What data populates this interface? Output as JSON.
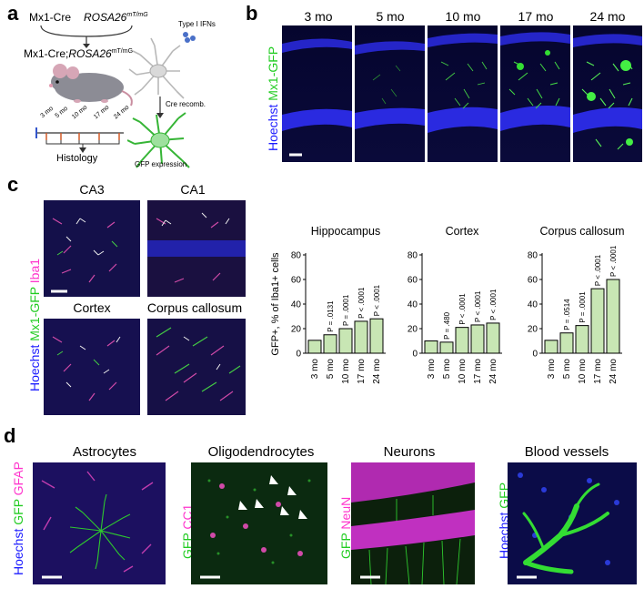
{
  "panels": {
    "a": "a",
    "b": "b",
    "c": "c",
    "d": "d"
  },
  "panel_a": {
    "mx1cre": "Mx1-Cre",
    "rosa_base": "ROSA26",
    "rosa_sup": "mT/mG",
    "cross_base": "Mx1-Cre;",
    "cross_rosa": "ROSA26",
    "cross_sup": "mT/mG",
    "type1": "Type I IFNs",
    "cre": "Cre recomb.",
    "gfp_expr": "GFP expression",
    "histology": "Histology",
    "timeline": [
      "3 mo",
      "5 mo",
      "10 mo",
      "17 mo",
      "24 mo"
    ]
  },
  "panel_b": {
    "ages": [
      "3 mo",
      "5 mo",
      "10 mo",
      "17 mo",
      "24 mo"
    ],
    "stain_hoechst": "Hoechst",
    "stain_gfp": "Mx1-GFP"
  },
  "panel_c": {
    "regions": [
      "CA3",
      "CA1",
      "Cortex",
      "Corpus callosum"
    ],
    "stain_hoechst": "Hoechst",
    "stain_gfp": "Mx1-GFP",
    "stain_iba": "Iba1"
  },
  "panel_d": {
    "titles": [
      "Astrocytes",
      "Oligodendrocytes",
      "Neurons",
      "Blood vessels"
    ],
    "astro": {
      "hoechst": "Hoechst",
      "gfp": "GFP",
      "gfap": "GFAP"
    },
    "oligo": {
      "gfp": "GFP",
      "cc1": "CC1"
    },
    "neuron": {
      "gfp": "GFP",
      "neun": "NeuN"
    },
    "vessel": {
      "hoechst": "Hoechst",
      "gfp": "GFP"
    }
  },
  "colors": {
    "hoechst": "#1a1aff",
    "gfp": "#22cc22",
    "magenta": "#ff33cc",
    "bar_fill": "#c8e6b4"
  },
  "chart_data": [
    {
      "type": "bar",
      "title": "Hippocampus",
      "ylabel": "GFP+, % of Iba1+ cells",
      "categories": [
        "3 mo",
        "5 mo",
        "10 mo",
        "17 mo",
        "24 mo"
      ],
      "values": [
        10.5,
        15,
        20,
        26,
        28
      ],
      "pvalues": [
        "",
        "P = .0131",
        "P = .0001",
        "P < .0001",
        "P < .0001"
      ],
      "ylim": [
        0,
        80
      ],
      "yticks": [
        0,
        20,
        40,
        60,
        80
      ]
    },
    {
      "type": "bar",
      "title": "Cortex",
      "categories": [
        "3 mo",
        "5 mo",
        "10 mo",
        "17 mo",
        "24 mo"
      ],
      "values": [
        10,
        9,
        21,
        23,
        24.5
      ],
      "pvalues": [
        "",
        "P = .480",
        "P < .0001",
        "P < .0001",
        "P < .0001"
      ],
      "ylim": [
        0,
        80
      ],
      "yticks": [
        0,
        20,
        40,
        60,
        80
      ]
    },
    {
      "type": "bar",
      "title": "Corpus callosum",
      "categories": [
        "3 mo",
        "5 mo",
        "10 mo",
        "17 mo",
        "24 mo"
      ],
      "values": [
        10.5,
        16.5,
        22.5,
        52.5,
        60
      ],
      "pvalues": [
        "",
        "P = .0514",
        "P = .0001",
        "P < .0001",
        "P < .0001"
      ],
      "ylim": [
        0,
        80
      ],
      "yticks": [
        0,
        20,
        40,
        60,
        80
      ]
    }
  ]
}
